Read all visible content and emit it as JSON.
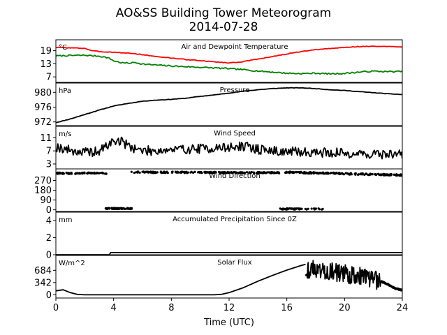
{
  "figure": {
    "title_line1": "AO&SS Building Tower Meteorogram",
    "title_line2": "2014-07-28",
    "xlabel": "Time (UTC)"
  },
  "chart_data": {
    "type": "line",
    "x_unit": "hours UTC",
    "xlim": [
      0,
      24
    ],
    "x_ticks": [
      0,
      4,
      8,
      12,
      16,
      20,
      24
    ],
    "x_tick_labels": [
      "0",
      "4",
      "8",
      "12",
      "16",
      "20",
      "24"
    ],
    "panels": [
      {
        "id": "temperature",
        "title": "Air and Dewpoint Temperature",
        "unit": "°C",
        "ylim": [
          4.5,
          24
        ],
        "y_ticks": [
          7,
          13,
          19
        ],
        "y_tick_labels": [
          "7",
          "13",
          "19"
        ],
        "series": [
          {
            "color": "#ff0000",
            "noise": 0.15,
            "seed": 3,
            "x": [
              0,
              1,
              2,
              2.5,
              3,
              4,
              5,
              6,
              7,
              8,
              9,
              10,
              11,
              12,
              13,
              14,
              15,
              16,
              17,
              18,
              19,
              20,
              21,
              22,
              23,
              24
            ],
            "y": [
              20.5,
              20.3,
              20.1,
              19.0,
              18.6,
              18.3,
              17.9,
              17.2,
              16.3,
              15.6,
              15.0,
              14.4,
              13.9,
              13.4,
              14.0,
              15.2,
              16.3,
              17.5,
              18.6,
              19.4,
              20.0,
              20.5,
              20.9,
              21.0,
              20.9,
              20.8
            ]
          },
          {
            "color": "#008000",
            "noise": 0.3,
            "seed": 7,
            "x": [
              0,
              1,
              2,
              3,
              3.6,
              4,
              4.5,
              5,
              5.5,
              6,
              7,
              8,
              9,
              10,
              11,
              12,
              13,
              14,
              15,
              16,
              17,
              18,
              19,
              20,
              21,
              22,
              23,
              24
            ],
            "y": [
              16.6,
              16.8,
              16.9,
              16.5,
              15.8,
              14.4,
              13.5,
              13.3,
              13.6,
              12.9,
              12.4,
              12.0,
              11.7,
              11.4,
              11.1,
              10.8,
              10.3,
              9.7,
              9.2,
              8.7,
              8.5,
              8.7,
              8.4,
              8.6,
              9.2,
              9.6,
              9.4,
              9.5
            ]
          }
        ]
      },
      {
        "id": "pressure",
        "title": "Pressure",
        "unit": "hPa",
        "ylim": [
          971,
          982.5
        ],
        "y_ticks": [
          972,
          976,
          980
        ],
        "y_tick_labels": [
          "972",
          "976",
          "980"
        ],
        "series": [
          {
            "color": "#000000",
            "noise": 0.05,
            "seed": 11,
            "x": [
              0,
              1,
              2,
              3,
              4,
              5,
              6,
              7,
              8,
              9,
              10,
              11,
              12,
              13,
              14,
              15,
              16,
              17,
              18,
              19,
              20,
              21,
              22,
              23,
              24
            ],
            "y": [
              971.8,
              972.8,
              974.0,
              975.2,
              976.3,
              977.0,
              977.6,
              977.9,
              978.1,
              978.4,
              978.9,
              979.3,
              979.8,
              980.3,
              980.7,
              981.0,
              981.2,
              981.2,
              981.0,
              980.7,
              980.5,
              980.2,
              979.9,
              979.6,
              979.4
            ]
          }
        ]
      },
      {
        "id": "wind-speed",
        "title": "Wind Speed",
        "unit": "m/s",
        "ylim": [
          1.5,
          14.5
        ],
        "y_ticks": [
          3,
          7,
          11
        ],
        "y_tick_labels": [
          "3",
          "7",
          "11"
        ],
        "series": [
          {
            "color": "#000000",
            "noise": 1.5,
            "seed": 19,
            "points": 360,
            "x": [
              0,
              1,
              2,
              3,
              3.5,
              4,
              4.5,
              5,
              6,
              8,
              10,
              12,
              13,
              14,
              15,
              16,
              18,
              20,
              22,
              24
            ],
            "y": [
              8.3,
              7.2,
              6.5,
              6.8,
              8.5,
              10.0,
              10.0,
              8.6,
              7.0,
              7.3,
              7.7,
              8.0,
              8.4,
              7.5,
              7.0,
              6.7,
              6.6,
              6.3,
              6.0,
              6.0
            ]
          }
        ]
      },
      {
        "id": "wind-direction",
        "title": "Wind Direction",
        "unit": "",
        "ylim": [
          -15,
          375
        ],
        "y_ticks": [
          0,
          90,
          180,
          270
        ],
        "y_tick_labels": [
          "0",
          "90",
          "180",
          "270"
        ],
        "scatter": [
          {
            "color": "#000000",
            "seed": 23,
            "spread": 6,
            "from": 0,
            "to": 3.5,
            "count": 80,
            "y_start": 335,
            "y_end": 335
          },
          {
            "color": "#000000",
            "seed": 29,
            "spread": 5,
            "from": 3.4,
            "to": 5.3,
            "count": 60,
            "y_start": 12,
            "y_end": 12
          },
          {
            "color": "#000000",
            "seed": 31,
            "spread": 6,
            "from": 5.2,
            "to": 15.5,
            "count": 220,
            "y_start": 345,
            "y_end": 340
          },
          {
            "color": "#000000",
            "seed": 37,
            "spread": 5,
            "from": 15.5,
            "to": 18.7,
            "count": 55,
            "y_start": 8,
            "y_end": 8
          },
          {
            "color": "#000000",
            "seed": 41,
            "spread": 7,
            "from": 15.8,
            "to": 24,
            "count": 180,
            "y_start": 345,
            "y_end": 318
          }
        ]
      },
      {
        "id": "precipitation",
        "title": "Accumulated Precipitation Since 0Z",
        "unit": "mm",
        "ylim": [
          0,
          5
        ],
        "y_ticks": [
          0,
          2,
          4
        ],
        "y_tick_labels": [
          "0",
          "2",
          "4"
        ],
        "series": [
          {
            "color": "#000000",
            "noise": 0,
            "seed": 1,
            "x": [
              0,
              3.7,
              3.8,
              24
            ],
            "y": [
              0,
              0,
              0.25,
              0.25
            ]
          }
        ]
      },
      {
        "id": "solar-flux",
        "title": "Solar Flux",
        "unit": "W/m^2",
        "ylim": [
          -90,
          1100
        ],
        "y_ticks": [
          0,
          342,
          684
        ],
        "y_tick_labels": [
          "0",
          "342",
          "684"
        ],
        "series": [
          {
            "color": "#000000",
            "noise": 0,
            "seed": 2,
            "x": [
              0,
              0.5,
              1,
              1.5,
              2,
              3,
              4,
              5,
              6,
              7,
              8,
              9,
              10,
              11,
              11.5,
              12,
              13,
              14,
              15,
              16,
              17,
              17.3
            ],
            "y": [
              110,
              140,
              60,
              10,
              0,
              0,
              0,
              0,
              0,
              0,
              0,
              0,
              0,
              0,
              15,
              60,
              200,
              380,
              540,
              690,
              820,
              850
            ]
          },
          {
            "color": "#000000",
            "noise": 260,
            "seed": 43,
            "points": 170,
            "x": [
              17.3,
              18,
              19,
              20,
              21,
              21.5,
              22,
              22.5
            ],
            "y": [
              700,
              720,
              650,
              580,
              540,
              500,
              420,
              380
            ]
          },
          {
            "color": "#000000",
            "noise": 30,
            "seed": 47,
            "x": [
              22.5,
              23,
              23.5,
              24
            ],
            "y": [
              380,
              290,
              180,
              130
            ]
          }
        ]
      }
    ]
  }
}
